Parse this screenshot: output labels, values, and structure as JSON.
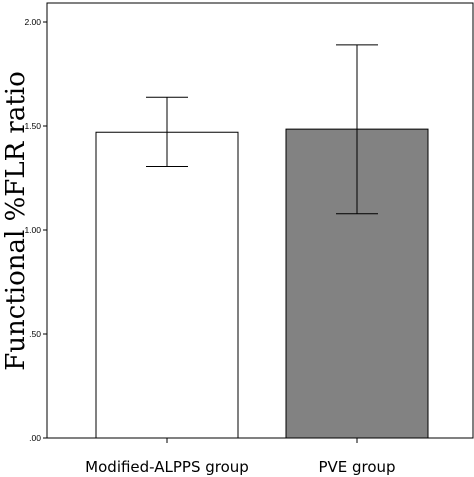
{
  "chart_data": {
    "type": "bar",
    "title": "",
    "xlabel": "",
    "ylabel": "Functional %FLR ratio",
    "categories": [
      "Modified-ALPPS group",
      "PVE group"
    ],
    "values": [
      1.47,
      1.485
    ],
    "error_low": [
      1.305,
      1.078
    ],
    "error_high": [
      1.638,
      1.89
    ],
    "bar_colors": [
      "#ffffff",
      "#828282"
    ],
    "ylim": [
      0,
      2.0
    ],
    "yticks": [
      0.0,
      0.5,
      1.0,
      1.5,
      2.0
    ],
    "ytick_labels": [
      ".00",
      ".50",
      "1.00",
      "1.50",
      "2.00"
    ],
    "grid": false,
    "legend": "none"
  }
}
